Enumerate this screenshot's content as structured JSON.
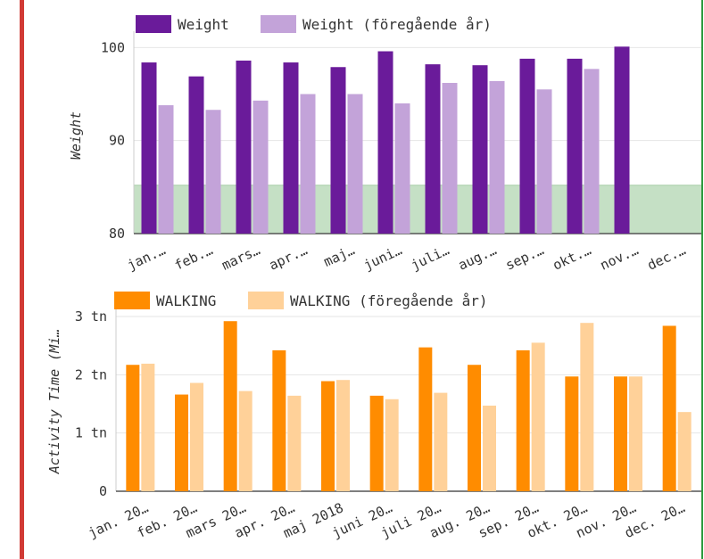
{
  "colors": {
    "weight_current": "#6a1b9a",
    "weight_previous": "#c3a3d9",
    "walking_current": "#ff8c00",
    "walking_previous": "#ffd199",
    "target_band": "#c5e0c5",
    "left_border": "#d13a35",
    "right_border": "#2e9a3e"
  },
  "chart_data": [
    {
      "type": "bar",
      "ylabel": "Weight",
      "ylim": [
        80,
        100.8
      ],
      "y_ticks": [
        80,
        90,
        100
      ],
      "y_tick_labels": [
        "80",
        "90",
        "100"
      ],
      "target_band": [
        80,
        85.2
      ],
      "grid": true,
      "legend_position": "top-left",
      "categories": [
        "jan.…",
        "feb.…",
        "mars…",
        "apr.…",
        "maj…",
        "juni…",
        "juli…",
        "aug.…",
        "sep.…",
        "okt.…",
        "nov.…",
        "dec.…"
      ],
      "series": [
        {
          "name": "Weight",
          "values": [
            98.4,
            96.9,
            98.6,
            98.4,
            97.9,
            99.6,
            98.2,
            98.1,
            98.8,
            98.8,
            100.1,
            null
          ]
        },
        {
          "name": "Weight (föregående år)",
          "values": [
            93.8,
            93.3,
            94.3,
            95.0,
            95.0,
            94.0,
            96.2,
            96.4,
            95.5,
            97.7,
            null,
            null
          ]
        }
      ]
    },
    {
      "type": "bar",
      "ylabel": "Activity Time (Mi…",
      "ylim": [
        0,
        3000
      ],
      "y_ticks": [
        0,
        1000,
        2000,
        3000
      ],
      "y_tick_labels": [
        "0",
        "1 tn",
        "2 tn",
        "3 tn"
      ],
      "grid": true,
      "legend_position": "top-left",
      "categories": [
        "jan. 20…",
        "feb. 20…",
        "mars 20…",
        "apr. 20…",
        "maj 2018",
        "juni 20…",
        "juli 20…",
        "aug. 20…",
        "sep. 20…",
        "okt. 20…",
        "nov. 20…",
        "dec. 20…"
      ],
      "series": [
        {
          "name": "WALKING",
          "values": [
            2170,
            1660,
            2920,
            2420,
            1890,
            1640,
            2470,
            2170,
            2420,
            1970,
            1970,
            2840
          ]
        },
        {
          "name": "WALKING (föregående år)",
          "values": [
            2190,
            1860,
            1720,
            1640,
            1910,
            1580,
            1690,
            1470,
            2550,
            2890,
            1970,
            1360
          ]
        }
      ]
    }
  ]
}
